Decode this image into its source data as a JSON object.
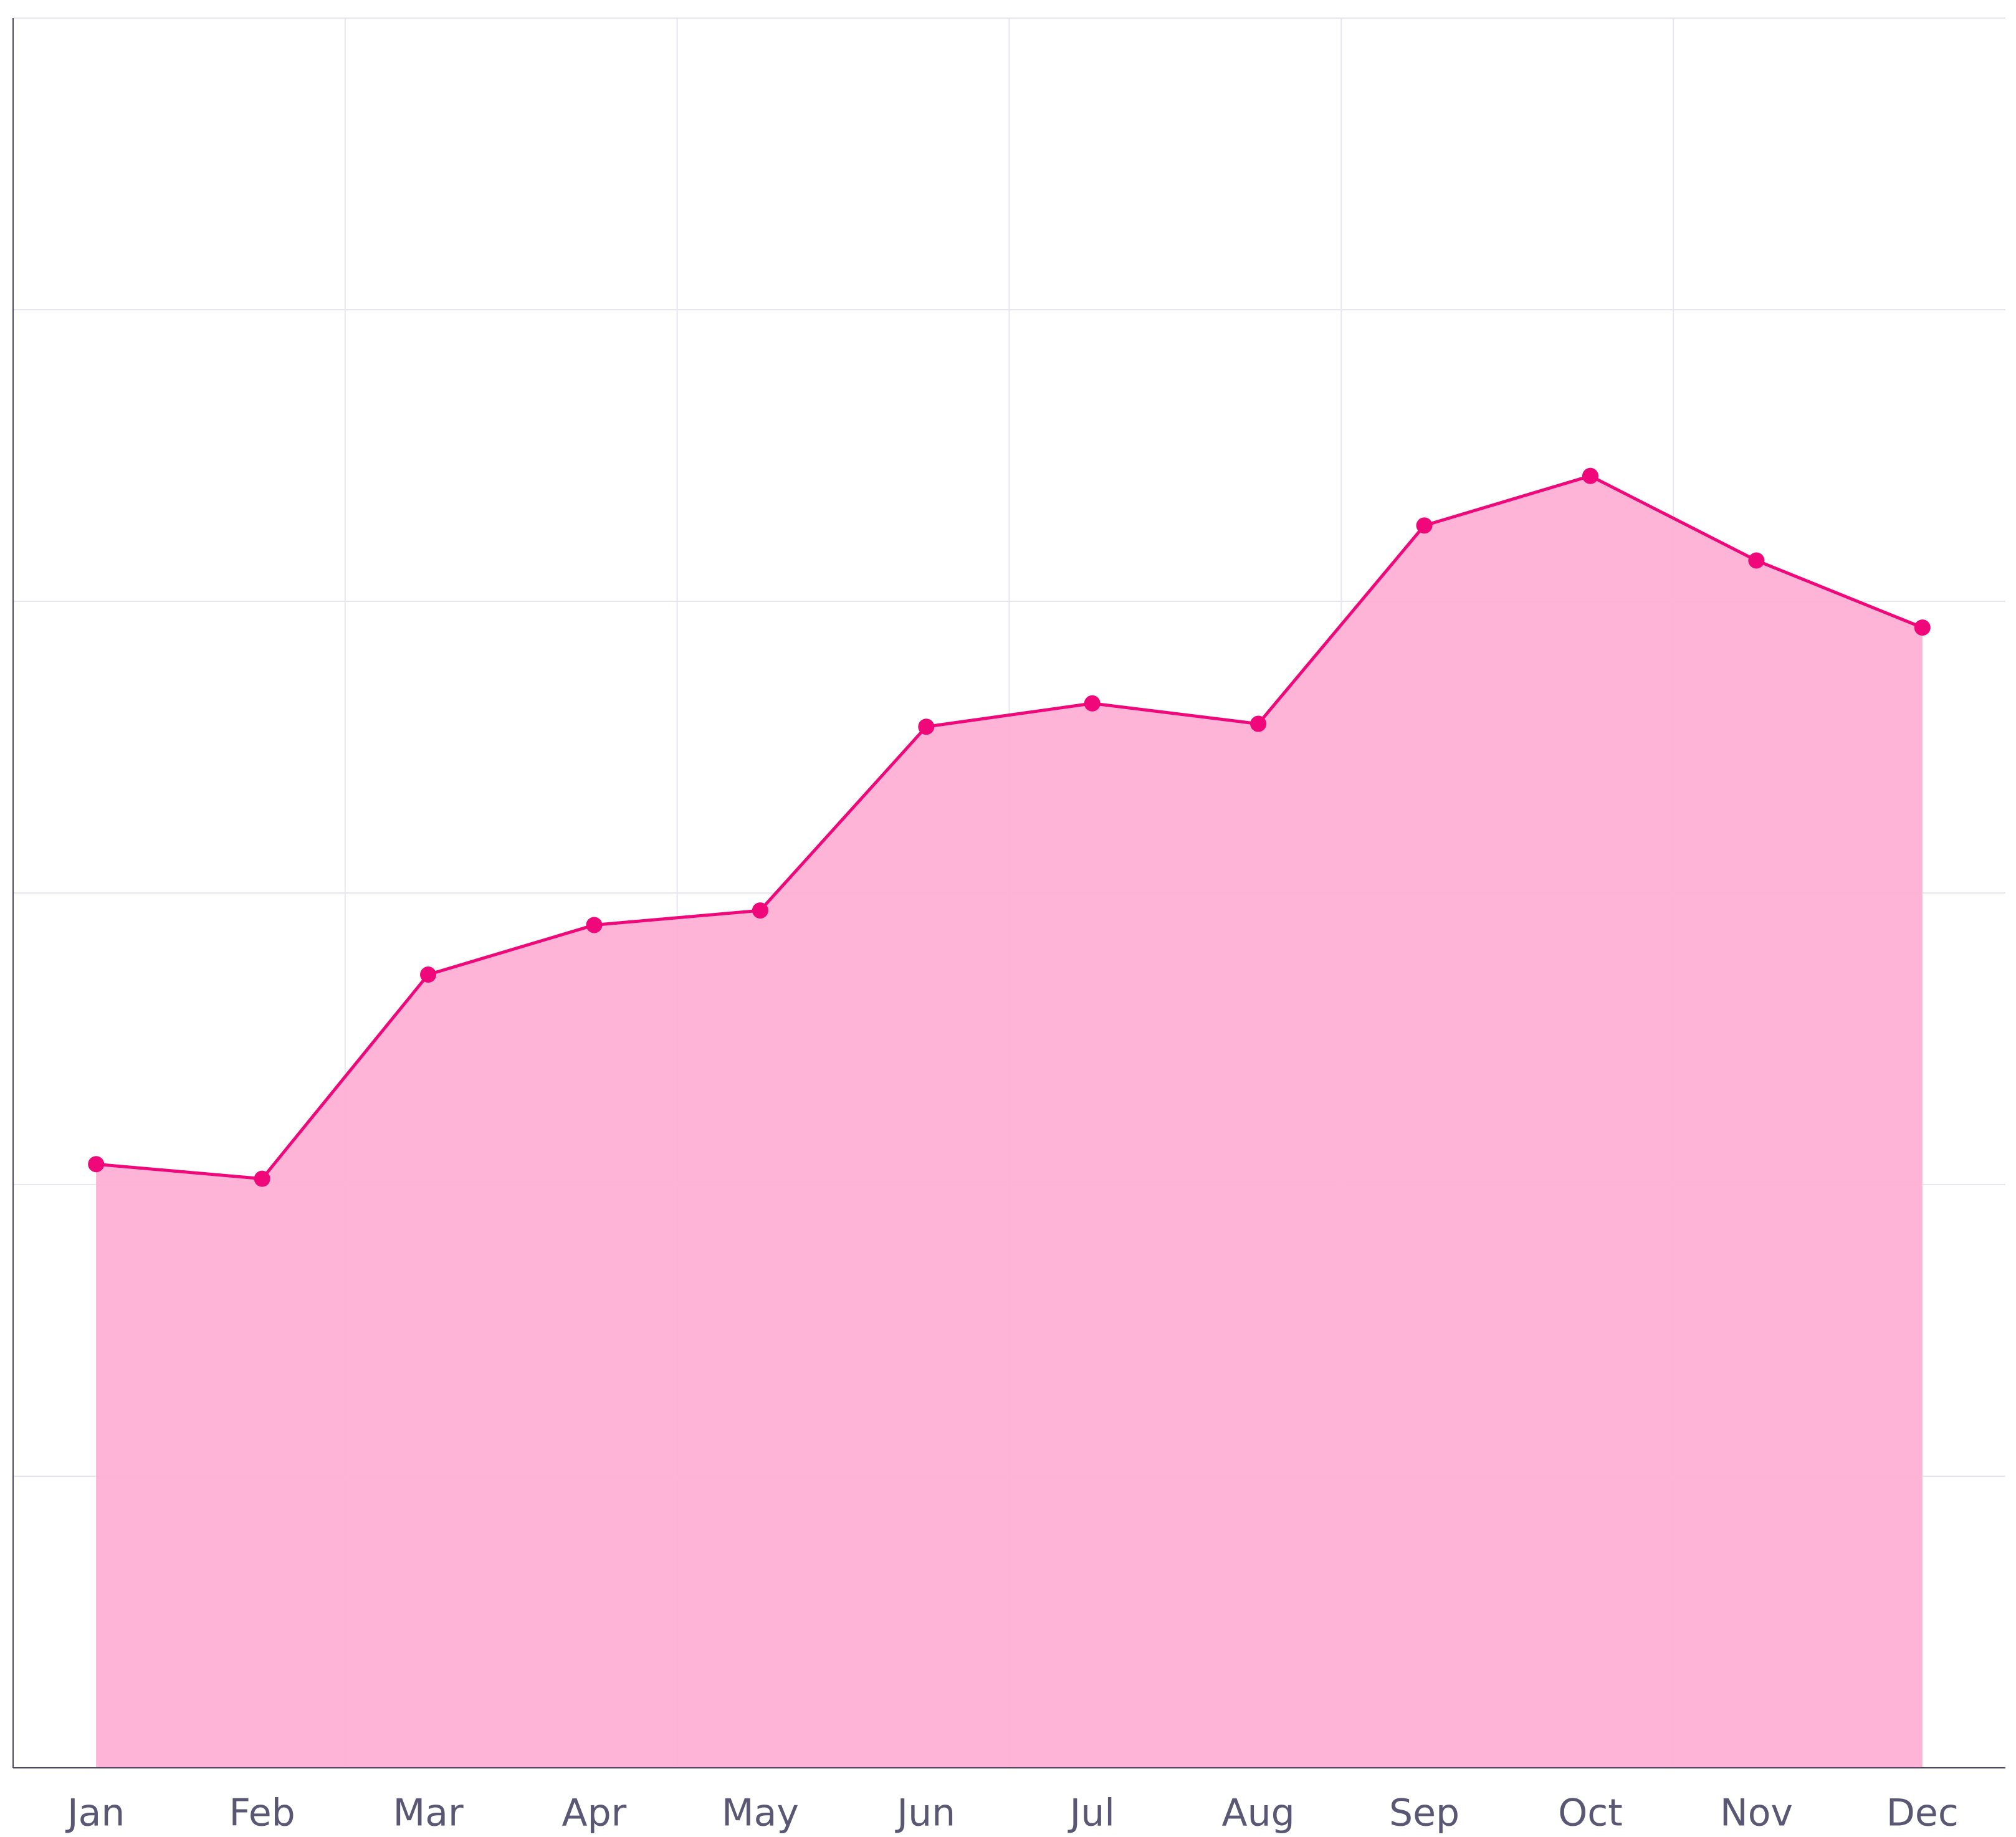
{
  "chart_data": {
    "type": "area",
    "categories": [
      "Jan",
      "Feb",
      "Mar",
      "Apr",
      "May",
      "Jun",
      "Jul",
      "Aug",
      "Sep",
      "Oct",
      "Nov",
      "Dec"
    ],
    "series": [
      {
        "color": "#f0077a",
        "fill": "#fdb0d4",
        "values": [
          2.07,
          2.02,
          2.72,
          2.89,
          2.94,
          3.57,
          3.65,
          3.58,
          4.26,
          4.43,
          4.14,
          3.91
        ]
      }
    ],
    "ylim": [
      0,
      6
    ],
    "yticks": [
      0,
      1,
      2,
      3,
      4,
      5,
      6
    ],
    "grid": true
  }
}
